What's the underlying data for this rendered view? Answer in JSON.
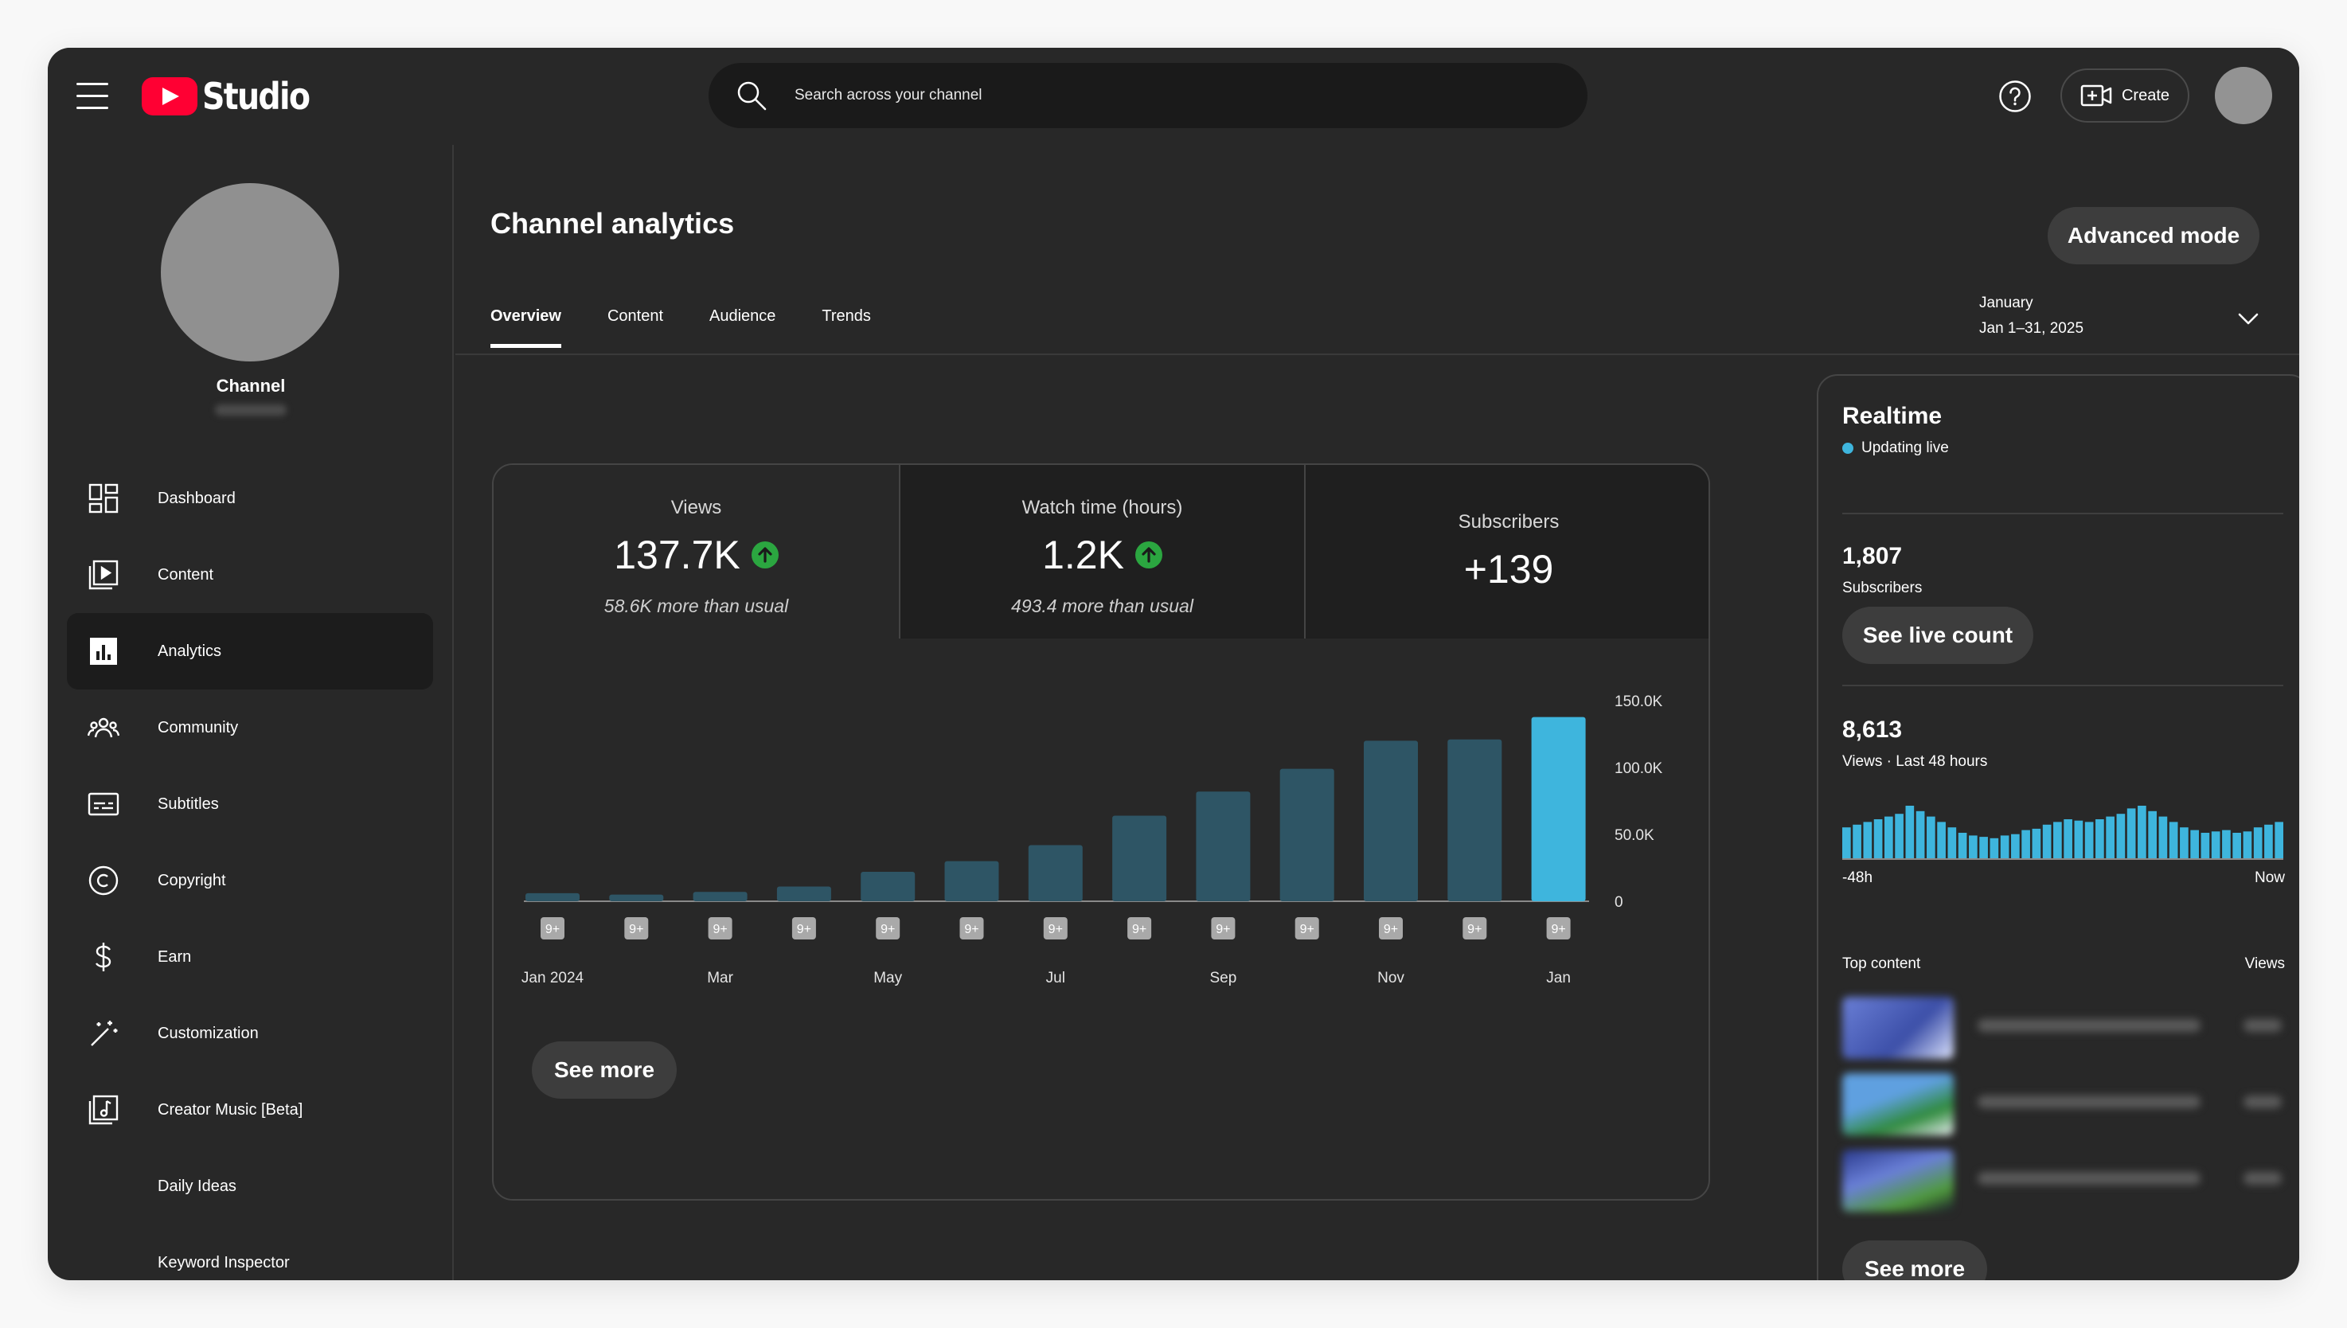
{
  "header": {
    "logo_text": "Studio",
    "search_placeholder": "Search across your channel",
    "create_label": "Create"
  },
  "sidebar": {
    "channel_name": "Channel",
    "items": [
      {
        "label": "Dashboard",
        "icon": "dashboard-icon",
        "active": false
      },
      {
        "label": "Content",
        "icon": "content-icon",
        "active": false
      },
      {
        "label": "Analytics",
        "icon": "analytics-icon",
        "active": true
      },
      {
        "label": "Community",
        "icon": "community-icon",
        "active": false
      },
      {
        "label": "Subtitles",
        "icon": "subtitles-icon",
        "active": false
      },
      {
        "label": "Copyright",
        "icon": "copyright-icon",
        "active": false
      },
      {
        "label": "Earn",
        "icon": "earn-icon",
        "active": false
      },
      {
        "label": "Customization",
        "icon": "customization-icon",
        "active": false
      },
      {
        "label": "Creator Music [Beta]",
        "icon": "creator-music-icon",
        "active": false
      },
      {
        "label": "Daily Ideas",
        "icon": "",
        "active": false
      },
      {
        "label": "Keyword Inspector",
        "icon": "",
        "active": false
      }
    ]
  },
  "main": {
    "title": "Channel analytics",
    "advanced_mode_label": "Advanced mode",
    "tabs": [
      {
        "label": "Overview",
        "active": true
      },
      {
        "label": "Content",
        "active": false
      },
      {
        "label": "Audience",
        "active": false
      },
      {
        "label": "Trends",
        "active": false
      }
    ],
    "date_range": {
      "period": "January",
      "range": "Jan 1–31, 2025"
    },
    "metrics": [
      {
        "title": "Views",
        "value": "137.7K",
        "subtitle": "58.6K more than usual",
        "trend": "up"
      },
      {
        "title": "Watch time (hours)",
        "value": "1.2K",
        "subtitle": "493.4 more than usual",
        "trend": "up"
      },
      {
        "title": "Subscribers",
        "value": "+139"
      }
    ],
    "see_more_label": "See more"
  },
  "colors": {
    "accent_blue": "#3eb5dd",
    "bar_muted": "#2e5565",
    "trend_green": "#2ba640",
    "brand_red": "#ff0033"
  },
  "chart_data": {
    "type": "bar",
    "categories": [
      "Jan 2024",
      "Feb 2024",
      "Mar 2024",
      "Apr 2024",
      "May 2024",
      "Jun 2024",
      "Jul 2024",
      "Aug 2024",
      "Sep 2024",
      "Oct 2024",
      "Nov 2024",
      "Dec 2024",
      "Jan 2025"
    ],
    "tick_labels": [
      "Jan 2024",
      "",
      "Mar",
      "",
      "May",
      "",
      "Jul",
      "",
      "Sep",
      "",
      "Nov",
      "",
      "Jan"
    ],
    "series": [
      {
        "values": [
          6000,
          5000,
          7000,
          11000,
          22000,
          30000,
          42000,
          64000,
          82000,
          99000,
          120000,
          121000,
          137700
        ]
      }
    ],
    "highlight_index": 12,
    "y_ticks": [
      "150.0K",
      "100.0K",
      "50.0K",
      "0"
    ],
    "y_tick_values": [
      150000,
      100000,
      50000,
      0
    ],
    "ylim": [
      0,
      150000
    ],
    "marker_label": "9+",
    "grid": false
  },
  "realtime": {
    "title": "Realtime",
    "status": "Updating live",
    "subscribers_value": "1,807",
    "subscribers_label": "Subscribers",
    "see_live_count_label": "See live count",
    "views_value": "8,613",
    "views_label": "Views · Last 48 hours",
    "axis_start": "-48h",
    "axis_end": "Now",
    "hourly_views": [
      120,
      130,
      140,
      150,
      160,
      170,
      200,
      180,
      160,
      140,
      120,
      100,
      90,
      85,
      80,
      90,
      95,
      110,
      115,
      130,
      140,
      150,
      145,
      140,
      150,
      160,
      170,
      190,
      200,
      180,
      160,
      140,
      120,
      110,
      100,
      105,
      110,
      100,
      105,
      120,
      130,
      140
    ],
    "top_content_label": "Top content",
    "views_column_label": "Views",
    "see_more_label": "See more"
  }
}
